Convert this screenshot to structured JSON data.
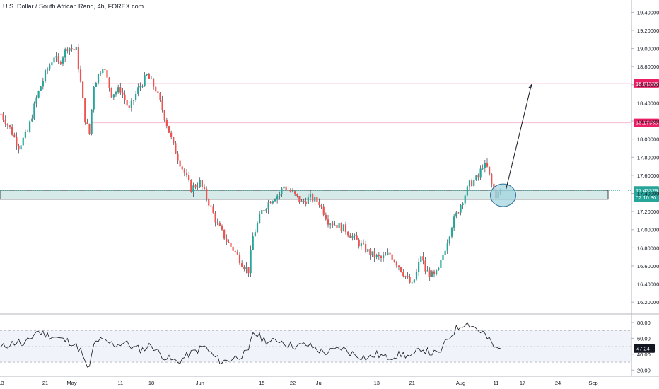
{
  "header": {
    "title": "U.S. Dollar / South African Rand, 4h, FOREX.com"
  },
  "colors": {
    "up": "#26a69a",
    "down": "#ef5350",
    "wick": "#131722",
    "axis_text": "#131722",
    "resistance_line": "#f8bbd0",
    "resistance_label_bg": "#e91e63",
    "current_label_bg": "#26a69a",
    "zone_fill": "#d6ebe9",
    "circle_fill": "#9fd3de",
    "circle_stroke": "#2a6f97",
    "rsi_band": "#f0f3fa",
    "rsi_line": "#131722"
  },
  "chart_data": [
    {
      "type": "candlestick",
      "title": "U.S. Dollar / South African Rand, 4h, FOREX.com",
      "x_ticks": [
        "13",
        "21",
        "May",
        "11",
        "18",
        "Jun",
        "15",
        "22",
        "Jul",
        "13",
        "21",
        "Aug",
        "11",
        "17",
        "24",
        "Sep"
      ],
      "x_tick_units": [
        0,
        10,
        16,
        27,
        34,
        45,
        59,
        66,
        72,
        85,
        93,
        104,
        112,
        118,
        126,
        134
      ],
      "y_ticks": [
        "16.20000",
        "16.40000",
        "16.60000",
        "16.80000",
        "17.00000",
        "17.20000",
        "17.40000",
        "17.60000",
        "17.80000",
        "18.00000",
        "18.20000",
        "18.40000",
        "18.60000",
        "18.80000",
        "19.00000",
        "19.20000",
        "19.40000"
      ],
      "ylim": [
        16.1,
        19.52
      ],
      "anchors": [
        [
          0,
          18.28
        ],
        [
          2,
          18.12
        ],
        [
          4,
          17.92
        ],
        [
          6,
          18.08
        ],
        [
          8,
          18.45
        ],
        [
          10,
          18.72
        ],
        [
          12,
          18.92
        ],
        [
          13,
          18.83
        ],
        [
          15,
          19.02
        ],
        [
          17,
          18.98
        ],
        [
          18,
          18.62
        ],
        [
          19,
          18.22
        ],
        [
          20,
          18.06
        ],
        [
          21,
          18.6
        ],
        [
          23,
          18.82
        ],
        [
          25,
          18.5
        ],
        [
          27,
          18.55
        ],
        [
          29,
          18.32
        ],
        [
          31,
          18.55
        ],
        [
          33,
          18.7
        ],
        [
          35,
          18.55
        ],
        [
          37,
          18.25
        ],
        [
          39,
          17.92
        ],
        [
          41,
          17.68
        ],
        [
          43,
          17.45
        ],
        [
          45,
          17.52
        ],
        [
          47,
          17.3
        ],
        [
          49,
          17.05
        ],
        [
          51,
          16.88
        ],
        [
          53,
          16.75
        ],
        [
          55,
          16.6
        ],
        [
          56,
          16.55
        ],
        [
          57,
          16.92
        ],
        [
          59,
          17.2
        ],
        [
          61,
          17.33
        ],
        [
          63,
          17.4
        ],
        [
          64,
          17.48
        ],
        [
          66,
          17.4
        ],
        [
          68,
          17.3
        ],
        [
          70,
          17.35
        ],
        [
          72,
          17.3
        ],
        [
          74,
          17.1
        ],
        [
          76,
          17.05
        ],
        [
          78,
          17.0
        ],
        [
          80,
          16.9
        ],
        [
          82,
          16.8
        ],
        [
          84,
          16.72
        ],
        [
          86,
          16.68
        ],
        [
          88,
          16.73
        ],
        [
          90,
          16.6
        ],
        [
          92,
          16.45
        ],
        [
          93,
          16.38
        ],
        [
          94,
          16.52
        ],
        [
          95,
          16.72
        ],
        [
          96,
          16.55
        ],
        [
          98,
          16.48
        ],
        [
          99,
          16.55
        ],
        [
          100,
          16.72
        ],
        [
          102,
          17.05
        ],
        [
          104,
          17.28
        ],
        [
          106,
          17.5
        ],
        [
          108,
          17.58
        ],
        [
          109,
          17.72
        ],
        [
          110,
          17.68
        ],
        [
          111,
          17.5
        ],
        [
          112,
          17.38
        ],
        [
          113,
          17.43
        ]
      ],
      "last_price": "17.43329",
      "countdown": "02:10:30",
      "resistance_levels": [
        {
          "value": 18.61558,
          "label": "18.61558"
        },
        {
          "value": 18.1795,
          "label": "18.17950"
        }
      ],
      "support_zone": {
        "low": 17.335,
        "high": 17.435
      },
      "projection_arrow": {
        "from": [
          113,
          17.45
        ],
        "to": [
          120,
          18.6
        ]
      }
    },
    {
      "type": "line",
      "y_ticks": [
        "20.00",
        "40.00",
        "60.00",
        "80.00"
      ],
      "ylim": [
        14,
        88
      ],
      "band": [
        30,
        70
      ],
      "last_value": "47.24",
      "anchors": [
        [
          0,
          48
        ],
        [
          2,
          53
        ],
        [
          4,
          56
        ],
        [
          5,
          50
        ],
        [
          7,
          62
        ],
        [
          8,
          69
        ],
        [
          10,
          65
        ],
        [
          12,
          62
        ],
        [
          14,
          58
        ],
        [
          16,
          55
        ],
        [
          18,
          45
        ],
        [
          19,
          28
        ],
        [
          20,
          22
        ],
        [
          21,
          52
        ],
        [
          22,
          58
        ],
        [
          24,
          55
        ],
        [
          26,
          52
        ],
        [
          28,
          55
        ],
        [
          30,
          48
        ],
        [
          32,
          46
        ],
        [
          34,
          52
        ],
        [
          36,
          40
        ],
        [
          38,
          34
        ],
        [
          40,
          30
        ],
        [
          42,
          38
        ],
        [
          44,
          44
        ],
        [
          46,
          50
        ],
        [
          48,
          38
        ],
        [
          50,
          30
        ],
        [
          52,
          34
        ],
        [
          54,
          38
        ],
        [
          56,
          42
        ],
        [
          57,
          68
        ],
        [
          59,
          60
        ],
        [
          61,
          55
        ],
        [
          63,
          58
        ],
        [
          65,
          52
        ],
        [
          67,
          50
        ],
        [
          69,
          52
        ],
        [
          71,
          48
        ],
        [
          73,
          42
        ],
        [
          75,
          44
        ],
        [
          77,
          48
        ],
        [
          79,
          42
        ],
        [
          81,
          38
        ],
        [
          83,
          35
        ],
        [
          85,
          40
        ],
        [
          87,
          36
        ],
        [
          89,
          38
        ],
        [
          91,
          40
        ],
        [
          93,
          36
        ],
        [
          95,
          48
        ],
        [
          97,
          42
        ],
        [
          99,
          40
        ],
        [
          101,
          58
        ],
        [
          103,
          72
        ],
        [
          105,
          80
        ],
        [
          107,
          75
        ],
        [
          108,
          70
        ],
        [
          109,
          68
        ],
        [
          110,
          60
        ],
        [
          111,
          54
        ],
        [
          112,
          46
        ],
        [
          113,
          47
        ]
      ]
    }
  ]
}
